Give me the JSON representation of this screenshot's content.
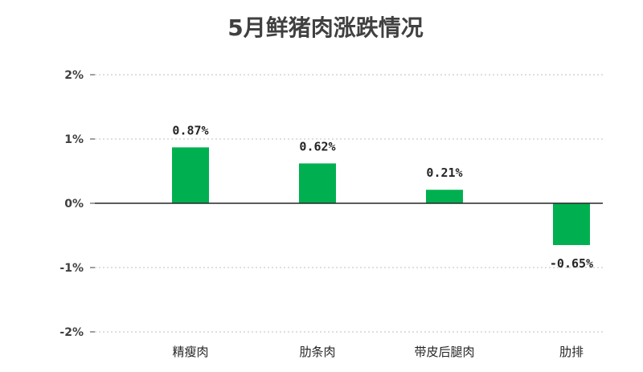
{
  "chart_data": {
    "type": "bar",
    "title": "5月鲜猪肉涨跌情况",
    "categories": [
      "精瘦肉",
      "肋条肉",
      "带皮后腿肉",
      "肋排"
    ],
    "values": [
      0.87,
      0.62,
      0.21,
      -0.65
    ],
    "value_labels": [
      "0.87%",
      "0.62%",
      "0.21%",
      "-0.65%"
    ],
    "yticks": [
      2,
      1,
      0,
      -1,
      -2
    ],
    "ytick_labels": [
      "2%",
      "1%",
      "0%",
      "-1%",
      "-2%"
    ],
    "ylim": [
      -2,
      2
    ],
    "grid": true,
    "grid_style": "dotted",
    "legend": "none",
    "bar_color": "#00b050"
  }
}
